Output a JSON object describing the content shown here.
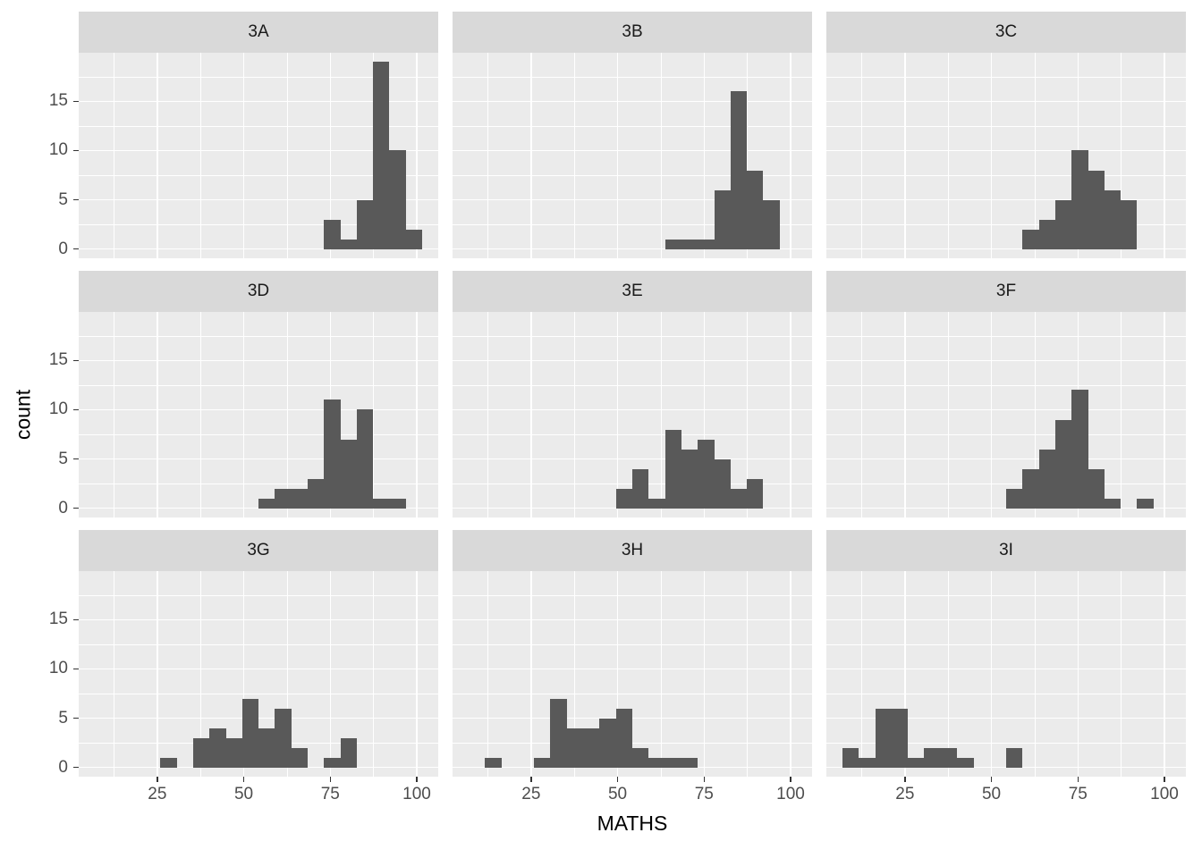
{
  "colors": {
    "figure_bg": "#ffffff",
    "panel_bg": "#ebebeb",
    "strip_bg": "#d9d9d9",
    "strip_text": "#1a1a1a",
    "gridline": "#ffffff",
    "bar_fill": "#595959",
    "tick_mark": "#333333",
    "tick_label": "#4d4d4d",
    "axis_title": "#000000"
  },
  "chart_data": {
    "type": "bar",
    "subtype": "faceted_histogram",
    "title": "",
    "xlabel": "MATHS",
    "ylabel": "count",
    "legend_position": "none",
    "grid": "white major and minor gridlines on gray panels",
    "facet_layout": {
      "rows": 3,
      "cols": 3
    },
    "xlim": [
      2.3,
      106.2
    ],
    "ylim": [
      -0.95,
      19.95
    ],
    "x_ticks": [
      25,
      50,
      75,
      100
    ],
    "y_ticks": [
      0,
      5,
      10,
      15
    ],
    "x_minor_gridlines": [
      12.5,
      37.5,
      62.5,
      87.5
    ],
    "y_minor_gridlines": [
      2.5,
      7.5,
      12.5,
      17.5
    ],
    "binwidth": 4.73,
    "bin_note": "each bin spans [x0, x0 + binwidth); count is bar height",
    "facets": [
      {
        "label": "3A",
        "bins": [
          {
            "x0": 73.2,
            "count": 3
          },
          {
            "x0": 77.9,
            "count": 1
          },
          {
            "x0": 82.6,
            "count": 5
          },
          {
            "x0": 87.3,
            "count": 19
          },
          {
            "x0": 92.1,
            "count": 10
          },
          {
            "x0": 96.8,
            "count": 2
          }
        ]
      },
      {
        "label": "3B",
        "bins": [
          {
            "x0": 63.7,
            "count": 1
          },
          {
            "x0": 68.4,
            "count": 1
          },
          {
            "x0": 73.2,
            "count": 1
          },
          {
            "x0": 77.9,
            "count": 6
          },
          {
            "x0": 82.6,
            "count": 16
          },
          {
            "x0": 87.3,
            "count": 8
          },
          {
            "x0": 92.1,
            "count": 5
          }
        ]
      },
      {
        "label": "3C",
        "bins": [
          {
            "x0": 59.0,
            "count": 2
          },
          {
            "x0": 63.7,
            "count": 3
          },
          {
            "x0": 68.4,
            "count": 5
          },
          {
            "x0": 73.2,
            "count": 10
          },
          {
            "x0": 77.9,
            "count": 8
          },
          {
            "x0": 82.6,
            "count": 6
          },
          {
            "x0": 87.3,
            "count": 5
          }
        ]
      },
      {
        "label": "3D",
        "bins": [
          {
            "x0": 54.3,
            "count": 1
          },
          {
            "x0": 59.0,
            "count": 2
          },
          {
            "x0": 63.7,
            "count": 2
          },
          {
            "x0": 68.4,
            "count": 3
          },
          {
            "x0": 73.2,
            "count": 11
          },
          {
            "x0": 77.9,
            "count": 7
          },
          {
            "x0": 82.6,
            "count": 10
          },
          {
            "x0": 87.3,
            "count": 1
          },
          {
            "x0": 92.1,
            "count": 1
          }
        ]
      },
      {
        "label": "3E",
        "bins": [
          {
            "x0": 49.5,
            "count": 2
          },
          {
            "x0": 54.3,
            "count": 4
          },
          {
            "x0": 59.0,
            "count": 1
          },
          {
            "x0": 63.7,
            "count": 8
          },
          {
            "x0": 68.4,
            "count": 6
          },
          {
            "x0": 73.2,
            "count": 7
          },
          {
            "x0": 77.9,
            "count": 5
          },
          {
            "x0": 82.6,
            "count": 2
          },
          {
            "x0": 87.3,
            "count": 3
          }
        ]
      },
      {
        "label": "3F",
        "bins": [
          {
            "x0": 54.3,
            "count": 2
          },
          {
            "x0": 59.0,
            "count": 4
          },
          {
            "x0": 63.7,
            "count": 6
          },
          {
            "x0": 68.4,
            "count": 9
          },
          {
            "x0": 73.2,
            "count": 12
          },
          {
            "x0": 77.9,
            "count": 4
          },
          {
            "x0": 82.6,
            "count": 1
          },
          {
            "x0": 92.1,
            "count": 1
          }
        ]
      },
      {
        "label": "3G",
        "bins": [
          {
            "x0": 25.9,
            "count": 1
          },
          {
            "x0": 35.4,
            "count": 3
          },
          {
            "x0": 40.1,
            "count": 4
          },
          {
            "x0": 44.8,
            "count": 3
          },
          {
            "x0": 49.5,
            "count": 7
          },
          {
            "x0": 54.3,
            "count": 4
          },
          {
            "x0": 59.0,
            "count": 6
          },
          {
            "x0": 63.7,
            "count": 2
          },
          {
            "x0": 73.2,
            "count": 1
          },
          {
            "x0": 77.9,
            "count": 3
          }
        ]
      },
      {
        "label": "3H",
        "bins": [
          {
            "x0": 11.7,
            "count": 1
          },
          {
            "x0": 25.9,
            "count": 1
          },
          {
            "x0": 30.6,
            "count": 7
          },
          {
            "x0": 35.4,
            "count": 4
          },
          {
            "x0": 40.1,
            "count": 4
          },
          {
            "x0": 44.8,
            "count": 5
          },
          {
            "x0": 49.5,
            "count": 6
          },
          {
            "x0": 54.3,
            "count": 2
          },
          {
            "x0": 59.0,
            "count": 1
          },
          {
            "x0": 63.7,
            "count": 1
          },
          {
            "x0": 68.4,
            "count": 1
          }
        ]
      },
      {
        "label": "3I",
        "bins": [
          {
            "x0": 7.0,
            "count": 2
          },
          {
            "x0": 11.7,
            "count": 1
          },
          {
            "x0": 16.5,
            "count": 6
          },
          {
            "x0": 21.2,
            "count": 6
          },
          {
            "x0": 25.9,
            "count": 1
          },
          {
            "x0": 30.6,
            "count": 2
          },
          {
            "x0": 35.4,
            "count": 2
          },
          {
            "x0": 40.1,
            "count": 1
          },
          {
            "x0": 54.3,
            "count": 2
          }
        ]
      }
    ]
  }
}
